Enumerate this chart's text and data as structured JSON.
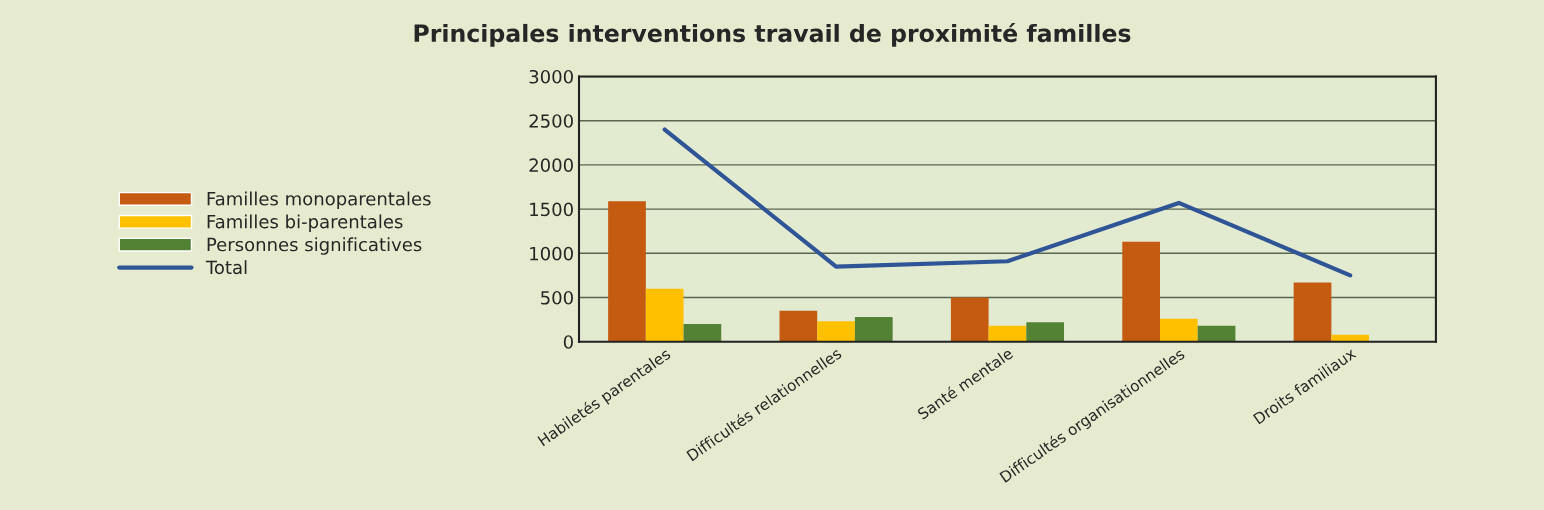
{
  "chart_data": {
    "type": "bar",
    "title": "Principales interventions travail de proximité familles",
    "categories": [
      "Habiletés parentales",
      "Difficultés relationnelles",
      "Santé mentale",
      "Difficultés organisationnelles",
      "Droits familiaux"
    ],
    "series": [
      {
        "name": "Familles monoparentales",
        "color": "#c55a11",
        "values": [
          1590,
          350,
          500,
          1130,
          670
        ]
      },
      {
        "name": "Familles bi-parentales",
        "color": "#ffc000",
        "values": [
          600,
          230,
          180,
          260,
          80
        ]
      },
      {
        "name": "Personnes significatives",
        "color": "#548235",
        "values": [
          200,
          280,
          220,
          180,
          0
        ]
      },
      {
        "name": "Total",
        "type": "line",
        "color": "#2f5597",
        "values": [
          2400,
          850,
          910,
          1570,
          750
        ]
      }
    ],
    "ylim": [
      0,
      3000
    ],
    "yticks": [
      0,
      500,
      1000,
      1500,
      2000,
      2500,
      3000
    ],
    "grid": "y",
    "legend": "left"
  }
}
